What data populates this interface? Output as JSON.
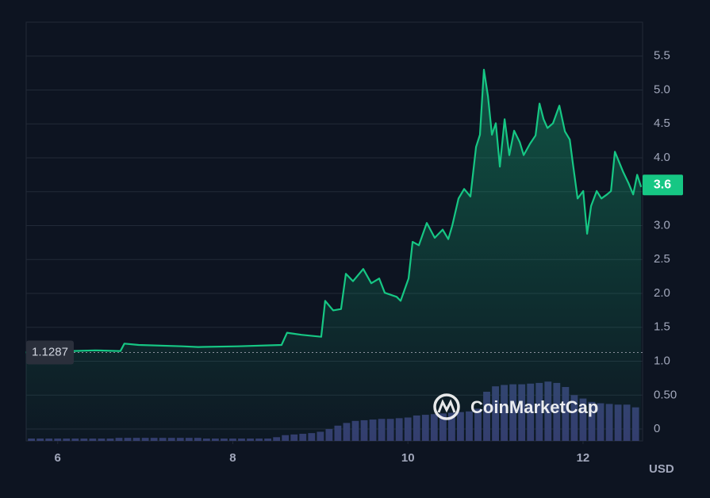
{
  "chart_data": {
    "type": "line",
    "x": [
      5.637,
      6.426,
      6.716,
      6.762,
      6.925,
      7.423,
      7.605,
      8.058,
      8.557,
      8.62,
      8.783,
      9.01,
      9.055,
      9.146,
      9.236,
      9.291,
      9.373,
      9.49,
      9.581,
      9.672,
      9.735,
      9.871,
      9.917,
      10.007,
      10.053,
      10.125,
      10.216,
      10.306,
      10.397,
      10.461,
      10.506,
      10.578,
      10.642,
      10.714,
      10.778,
      10.823,
      10.868,
      10.914,
      10.959,
      11.004,
      11.05,
      11.104,
      11.158,
      11.213,
      11.277,
      11.322,
      11.395,
      11.458,
      11.503,
      11.549,
      11.594,
      11.657,
      11.73,
      11.793,
      11.848,
      11.884,
      11.938,
      12.002,
      12.047,
      12.092,
      12.156,
      12.21,
      12.274,
      12.319,
      12.364,
      12.455,
      12.518,
      12.573,
      12.618,
      12.664
    ],
    "values": [
      1.13,
      1.16,
      1.15,
      1.26,
      1.24,
      1.22,
      1.21,
      1.22,
      1.24,
      1.42,
      1.39,
      1.36,
      1.89,
      1.75,
      1.77,
      2.29,
      2.18,
      2.36,
      2.15,
      2.22,
      2.01,
      1.95,
      1.89,
      2.22,
      2.76,
      2.71,
      3.04,
      2.82,
      2.94,
      2.8,
      3.0,
      3.4,
      3.54,
      3.43,
      4.16,
      4.34,
      5.3,
      4.91,
      4.34,
      4.51,
      3.87,
      4.57,
      4.04,
      4.4,
      4.23,
      4.04,
      4.21,
      4.33,
      4.8,
      4.57,
      4.44,
      4.51,
      4.77,
      4.39,
      4.27,
      3.92,
      3.4,
      3.51,
      2.88,
      3.29,
      3.51,
      3.4,
      3.46,
      3.51,
      4.09,
      3.8,
      3.63,
      3.46,
      3.75,
      3.57
    ],
    "color": "#16c784",
    "volume_x": [
      5.7,
      5.8,
      5.9,
      6.0,
      6.1,
      6.2,
      6.3,
      6.4,
      6.5,
      6.6,
      6.7,
      6.8,
      6.9,
      7.0,
      7.1,
      7.2,
      7.3,
      7.4,
      7.5,
      7.6,
      7.7,
      7.8,
      7.9,
      8.0,
      8.1,
      8.2,
      8.3,
      8.4,
      8.5,
      8.6,
      8.7,
      8.8,
      8.9,
      9.0,
      9.1,
      9.2,
      9.3,
      9.4,
      9.5,
      9.6,
      9.7,
      9.8,
      9.9,
      10.0,
      10.1,
      10.2,
      10.3,
      10.4,
      10.5,
      10.6,
      10.7,
      10.8,
      10.9,
      11.0,
      11.1,
      11.2,
      11.3,
      11.4,
      11.5,
      11.6,
      11.7,
      11.8,
      11.9,
      12.0,
      12.1,
      12.2,
      12.3,
      12.4,
      12.5,
      12.6
    ],
    "volume": [
      -0.14,
      -0.14,
      -0.14,
      -0.14,
      -0.14,
      -0.14,
      -0.14,
      -0.14,
      -0.14,
      -0.14,
      -0.13,
      -0.13,
      -0.13,
      -0.13,
      -0.13,
      -0.13,
      -0.13,
      -0.13,
      -0.13,
      -0.13,
      -0.14,
      -0.14,
      -0.14,
      -0.14,
      -0.14,
      -0.14,
      -0.14,
      -0.14,
      -0.12,
      -0.09,
      -0.08,
      -0.07,
      -0.06,
      -0.04,
      0.0,
      0.05,
      0.09,
      0.12,
      0.13,
      0.14,
      0.15,
      0.15,
      0.16,
      0.17,
      0.2,
      0.21,
      0.22,
      0.23,
      0.24,
      0.25,
      0.26,
      0.3,
      0.55,
      0.63,
      0.65,
      0.66,
      0.66,
      0.67,
      0.68,
      0.7,
      0.68,
      0.62,
      0.5,
      0.45,
      0.4,
      0.38,
      0.37,
      0.36,
      0.36,
      0.32
    ],
    "volume_color": "#343b6e",
    "xlim": [
      5.64,
      12.68
    ],
    "xticks": [
      6,
      8,
      10,
      12
    ],
    "ylim": [
      -0.175,
      6.0
    ],
    "yticks": [
      0,
      {
        "value": 0.5,
        "label": "0.50"
      },
      {
        "value": 1,
        "label": "1.0"
      },
      1.5,
      {
        "value": 2,
        "label": "2.0"
      },
      2.5,
      {
        "value": 3,
        "label": "3.0"
      },
      3.5,
      {
        "value": 4,
        "label": "4.0"
      },
      4.5,
      {
        "value": 5,
        "label": "5.0"
      },
      5.5
    ],
    "grid": true,
    "reference_line": 1.1287,
    "last_price": 3.6,
    "y_unit": "USD",
    "watermark": "CoinMarketCap"
  }
}
